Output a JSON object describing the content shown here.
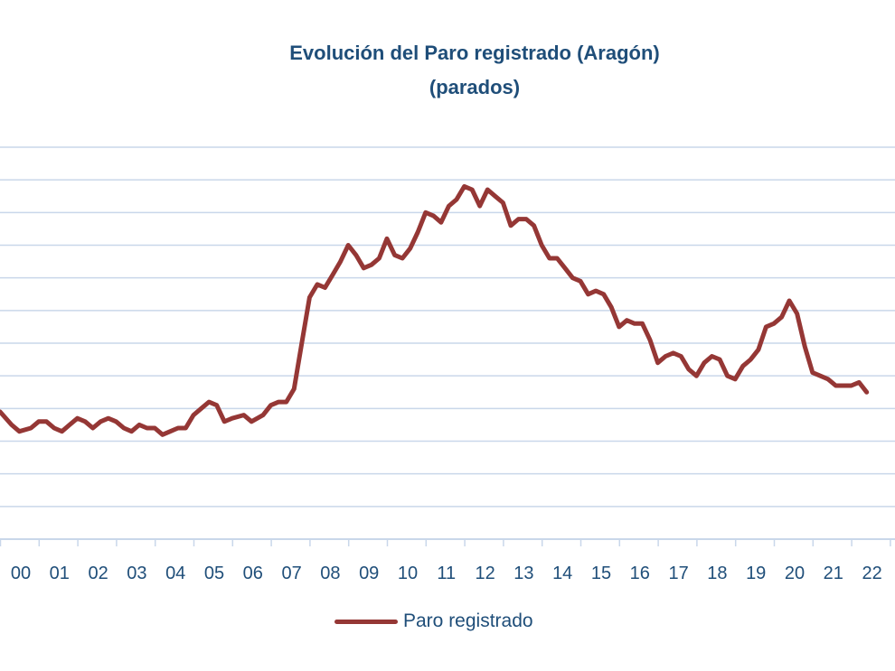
{
  "chart_data": {
    "type": "line",
    "title": "Evolución del Paro registrado (Aragón)",
    "subtitle": "(parados)",
    "xlabel": "",
    "ylabel": "",
    "categories": [
      "00",
      "01",
      "02",
      "03",
      "04",
      "05",
      "06",
      "07",
      "08",
      "09",
      "10",
      "11",
      "12",
      "13",
      "14",
      "15",
      "16",
      "17",
      "18",
      "19",
      "20",
      "21",
      "22"
    ],
    "grid": true,
    "legend_position": "bottom",
    "ylim": [
      0,
      12
    ],
    "colors": {
      "series": "#953735",
      "text": "#1f4e79",
      "grid": "#c9d7ea"
    },
    "series": [
      {
        "name": "Paro registrado",
        "points": [
          [
            0.0,
            3.9
          ],
          [
            0.3,
            3.5
          ],
          [
            0.5,
            3.3
          ],
          [
            0.8,
            3.4
          ],
          [
            1.0,
            3.6
          ],
          [
            1.2,
            3.6
          ],
          [
            1.4,
            3.4
          ],
          [
            1.6,
            3.3
          ],
          [
            1.8,
            3.5
          ],
          [
            2.0,
            3.7
          ],
          [
            2.2,
            3.6
          ],
          [
            2.4,
            3.4
          ],
          [
            2.6,
            3.6
          ],
          [
            2.8,
            3.7
          ],
          [
            3.0,
            3.6
          ],
          [
            3.2,
            3.4
          ],
          [
            3.4,
            3.3
          ],
          [
            3.6,
            3.5
          ],
          [
            3.8,
            3.4
          ],
          [
            4.0,
            3.4
          ],
          [
            4.2,
            3.2
          ],
          [
            4.4,
            3.3
          ],
          [
            4.6,
            3.4
          ],
          [
            4.8,
            3.4
          ],
          [
            5.0,
            3.8
          ],
          [
            5.2,
            4.0
          ],
          [
            5.4,
            4.2
          ],
          [
            5.6,
            4.1
          ],
          [
            5.8,
            3.6
          ],
          [
            6.0,
            3.7
          ],
          [
            6.3,
            3.8
          ],
          [
            6.5,
            3.6
          ],
          [
            6.8,
            3.8
          ],
          [
            7.0,
            4.1
          ],
          [
            7.2,
            4.2
          ],
          [
            7.4,
            4.2
          ],
          [
            7.6,
            4.6
          ],
          [
            7.8,
            6.0
          ],
          [
            8.0,
            7.4
          ],
          [
            8.2,
            7.8
          ],
          [
            8.4,
            7.7
          ],
          [
            8.6,
            8.1
          ],
          [
            8.8,
            8.5
          ],
          [
            9.0,
            9.0
          ],
          [
            9.2,
            8.7
          ],
          [
            9.4,
            8.3
          ],
          [
            9.6,
            8.4
          ],
          [
            9.8,
            8.6
          ],
          [
            10.0,
            9.2
          ],
          [
            10.2,
            8.7
          ],
          [
            10.4,
            8.6
          ],
          [
            10.6,
            8.9
          ],
          [
            10.8,
            9.4
          ],
          [
            11.0,
            10.0
          ],
          [
            11.2,
            9.9
          ],
          [
            11.4,
            9.7
          ],
          [
            11.6,
            10.2
          ],
          [
            11.8,
            10.4
          ],
          [
            12.0,
            10.8
          ],
          [
            12.2,
            10.7
          ],
          [
            12.4,
            10.2
          ],
          [
            12.6,
            10.7
          ],
          [
            12.8,
            10.5
          ],
          [
            13.0,
            10.3
          ],
          [
            13.2,
            9.6
          ],
          [
            13.4,
            9.8
          ],
          [
            13.6,
            9.8
          ],
          [
            13.8,
            9.6
          ],
          [
            14.0,
            9.0
          ],
          [
            14.2,
            8.6
          ],
          [
            14.4,
            8.6
          ],
          [
            14.6,
            8.3
          ],
          [
            14.8,
            8.0
          ],
          [
            15.0,
            7.9
          ],
          [
            15.2,
            7.5
          ],
          [
            15.4,
            7.6
          ],
          [
            15.6,
            7.5
          ],
          [
            15.8,
            7.1
          ],
          [
            16.0,
            6.5
          ],
          [
            16.2,
            6.7
          ],
          [
            16.4,
            6.6
          ],
          [
            16.6,
            6.6
          ],
          [
            16.8,
            6.1
          ],
          [
            17.0,
            5.4
          ],
          [
            17.2,
            5.6
          ],
          [
            17.4,
            5.7
          ],
          [
            17.6,
            5.6
          ],
          [
            17.8,
            5.2
          ],
          [
            18.0,
            5.0
          ],
          [
            18.2,
            5.4
          ],
          [
            18.4,
            5.6
          ],
          [
            18.6,
            5.5
          ],
          [
            18.8,
            5.0
          ],
          [
            19.0,
            4.9
          ],
          [
            19.2,
            5.3
          ],
          [
            19.4,
            5.5
          ],
          [
            19.6,
            5.8
          ],
          [
            19.8,
            6.5
          ],
          [
            20.0,
            6.6
          ],
          [
            20.2,
            6.8
          ],
          [
            20.4,
            7.3
          ],
          [
            20.6,
            6.9
          ],
          [
            20.8,
            5.9
          ],
          [
            21.0,
            5.1
          ],
          [
            21.2,
            5.0
          ],
          [
            21.4,
            4.9
          ],
          [
            21.6,
            4.7
          ],
          [
            21.8,
            4.7
          ],
          [
            22.0,
            4.7
          ],
          [
            22.2,
            4.8
          ],
          [
            22.4,
            4.5
          ]
        ]
      }
    ]
  }
}
